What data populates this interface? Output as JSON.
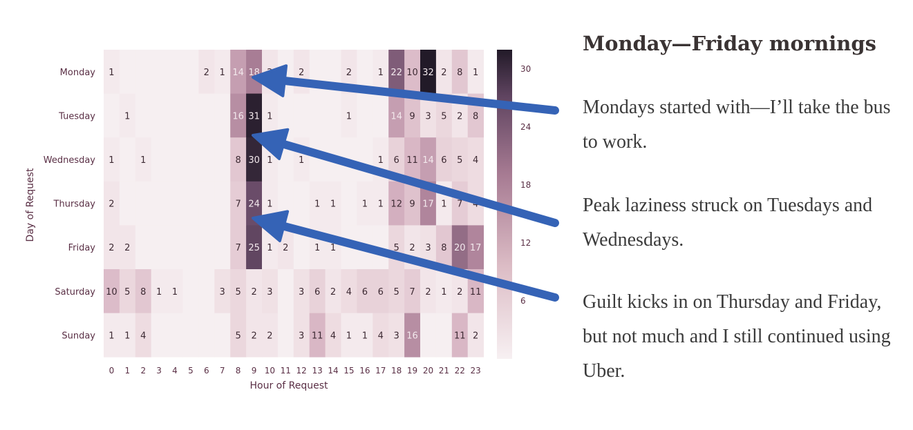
{
  "chart_data": {
    "type": "heatmap",
    "title": "",
    "xlabel": "Hour of Request",
    "ylabel": "Day of Request",
    "x_categories": [
      "0",
      "1",
      "2",
      "3",
      "4",
      "5",
      "6",
      "7",
      "8",
      "9",
      "10",
      "11",
      "12",
      "13",
      "14",
      "15",
      "16",
      "17",
      "18",
      "19",
      "20",
      "21",
      "22",
      "23"
    ],
    "y_categories": [
      "Monday",
      "Tuesday",
      "Wednesday",
      "Thursday",
      "Friday",
      "Saturday",
      "Sunday"
    ],
    "values": [
      [
        1,
        0,
        0,
        0,
        0,
        0,
        2,
        1,
        14,
        18,
        2,
        0,
        2,
        0,
        0,
        2,
        0,
        1,
        22,
        10,
        32,
        2,
        8,
        1
      ],
      [
        0,
        1,
        0,
        0,
        0,
        0,
        0,
        0,
        16,
        31,
        1,
        0,
        0,
        0,
        0,
        1,
        0,
        0,
        14,
        9,
        3,
        5,
        2,
        8
      ],
      [
        1,
        0,
        1,
        0,
        0,
        0,
        0,
        0,
        8,
        30,
        1,
        0,
        1,
        0,
        0,
        0,
        0,
        1,
        6,
        11,
        14,
        6,
        5,
        4
      ],
      [
        2,
        0,
        0,
        0,
        0,
        0,
        0,
        0,
        7,
        24,
        1,
        0,
        0,
        1,
        1,
        0,
        1,
        1,
        12,
        9,
        17,
        1,
        7,
        4
      ],
      [
        2,
        2,
        0,
        0,
        0,
        0,
        0,
        0,
        7,
        25,
        1,
        2,
        0,
        1,
        1,
        0,
        0,
        0,
        5,
        2,
        3,
        8,
        20,
        17
      ],
      [
        10,
        5,
        8,
        1,
        1,
        0,
        0,
        3,
        5,
        2,
        3,
        0,
        3,
        6,
        2,
        4,
        6,
        6,
        5,
        7,
        2,
        1,
        2,
        11
      ],
      [
        1,
        1,
        4,
        0,
        0,
        0,
        0,
        0,
        5,
        2,
        2,
        0,
        3,
        11,
        4,
        1,
        1,
        4,
        3,
        16,
        0,
        0,
        11,
        2
      ]
    ],
    "colorbar": {
      "min": 0,
      "max": 32,
      "ticks": [
        "6",
        "12",
        "18",
        "24",
        "30"
      ]
    },
    "colors": {
      "low": "#f4eaec",
      "mid": "#c49aac",
      "high": "#2a1d30",
      "arrow": "#3563b6"
    },
    "annotations": "three arrows pointing to the 9 o'clock column for Monday, Tuesday–Wednesday and Thursday–Friday"
  },
  "sidebar": {
    "title": "Monday—Friday mornings",
    "note1": "Mondays started with—I’ll take the bus to work.",
    "note2": "Peak laziness struck on Tuesdays and Wednesdays.",
    "note3": "Guilt kicks in on Thursday and Friday, but not much and I still continued using Uber."
  }
}
